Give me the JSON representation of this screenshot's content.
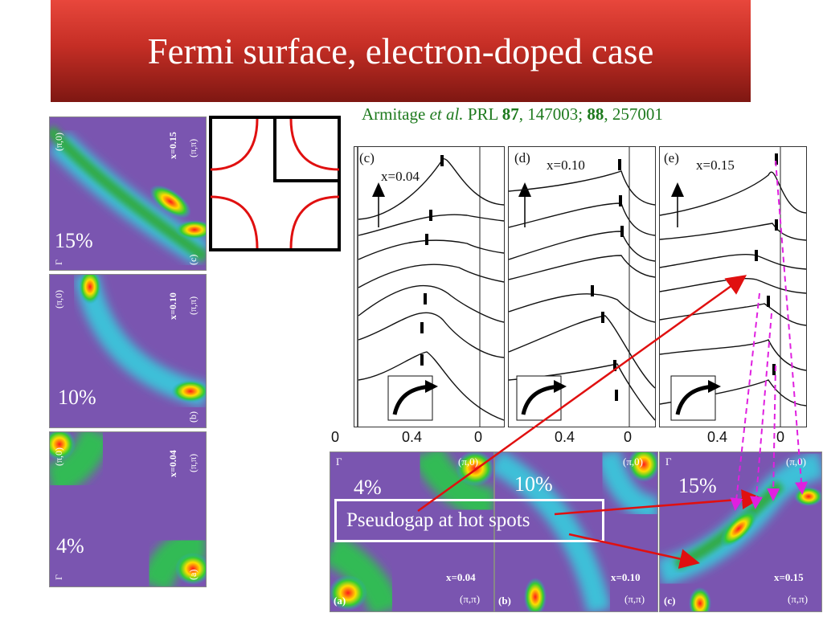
{
  "slide": {
    "title": "Fermi surface, electron-doped case",
    "citation": {
      "authors": "Armitage",
      "etal": "et al.",
      "journal": "PRL",
      "vol1": "87",
      "pages1": ", 147003; ",
      "vol2": "88",
      "pages2": ", 257001"
    },
    "callout": "Pseudogap at hot spots"
  },
  "left_maps": [
    {
      "pct": "15%",
      "x": "x=0.15",
      "pi0": "(π,0)",
      "pipi": "(π,π)",
      "panel": "(c)",
      "gamma": "Γ"
    },
    {
      "pct": "10%",
      "x": "x=0.10",
      "pi0": "(π,0)",
      "pipi": "(π,π)",
      "panel": "(b)"
    },
    {
      "pct": "4%",
      "x": "x=0.04",
      "pi0": "(π,0)",
      "pipi": "(π,π)",
      "panel": "(a)",
      "gamma": "Γ"
    }
  ],
  "edc_panels": [
    {
      "tag": "(c)",
      "x": "x=0.04"
    },
    {
      "tag": "(d)",
      "x": "x=0.10"
    },
    {
      "tag": "(e)",
      "x": "x=0.15"
    }
  ],
  "edc_ticks": {
    "a": "0.4",
    "b": "0",
    "edge": "0"
  },
  "bottom_maps": [
    {
      "pct": "4%",
      "x": "x=0.04",
      "pi0": "(π,0)",
      "pipi": "(π,π)",
      "panel": "(a)",
      "gamma": "Γ"
    },
    {
      "pct": "10%",
      "x": "x=0.10",
      "pi0": "(π,0)",
      "pipi": "(π,π)",
      "panel": "(b)"
    },
    {
      "pct": "15%",
      "x": "x=0.15",
      "pi0": "(π,0)",
      "pipi": "(π,π)",
      "panel": "(c)",
      "gamma": "Γ"
    }
  ],
  "colors": {
    "banner": "#c52e25",
    "citation": "#1e7a1e",
    "arrow": "#e01010",
    "dashed": "#e020e0",
    "fermi_line": "#e01010"
  }
}
